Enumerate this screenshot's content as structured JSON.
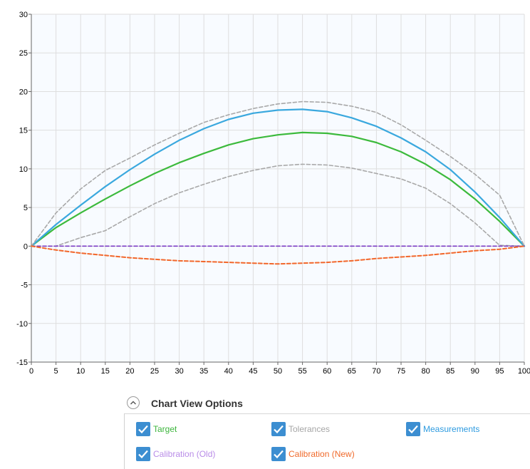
{
  "chart_data": {
    "type": "line",
    "title": "",
    "xlabel": "",
    "ylabel": "",
    "xlim": [
      0,
      100
    ],
    "ylim": [
      -15,
      30
    ],
    "x_ticks": [
      0,
      5,
      10,
      15,
      20,
      25,
      30,
      35,
      40,
      45,
      50,
      55,
      60,
      65,
      70,
      75,
      80,
      85,
      90,
      95,
      100
    ],
    "y_ticks": [
      30,
      25,
      20,
      15,
      10,
      5,
      0,
      -5,
      -10,
      -15
    ],
    "grid": true,
    "series": [
      {
        "name": "Target",
        "style": "solid",
        "color": "#3cba3c",
        "x": [
          0,
          5,
          10,
          15,
          20,
          25,
          30,
          35,
          40,
          45,
          50,
          55,
          60,
          65,
          70,
          75,
          80,
          85,
          90,
          95,
          100
        ],
        "y": [
          0,
          2.4,
          4.3,
          6.1,
          7.8,
          9.4,
          10.8,
          12.0,
          13.1,
          13.9,
          14.4,
          14.7,
          14.6,
          14.2,
          13.4,
          12.2,
          10.6,
          8.6,
          6.1,
          3.2,
          0
        ]
      },
      {
        "name": "Measurements",
        "style": "solid",
        "color": "#3aa8de",
        "x": [
          0,
          5,
          10,
          15,
          20,
          25,
          30,
          35,
          40,
          45,
          50,
          55,
          60,
          65,
          70,
          75,
          80,
          85,
          90,
          95,
          100
        ],
        "y": [
          0,
          2.8,
          5.3,
          7.7,
          9.9,
          11.9,
          13.7,
          15.2,
          16.4,
          17.2,
          17.6,
          17.7,
          17.4,
          16.6,
          15.5,
          14.0,
          12.2,
          9.9,
          7.0,
          3.7,
          0
        ]
      },
      {
        "name": "Tolerances",
        "style": "dashed",
        "color": "#a8a8a8",
        "x": [
          0,
          5,
          10,
          15,
          20,
          25,
          30,
          35,
          40,
          45,
          50,
          55,
          60,
          65,
          70,
          75,
          80,
          85,
          90,
          95,
          100
        ],
        "y": [
          0,
          4.3,
          7.4,
          9.8,
          11.4,
          13.1,
          14.6,
          16.0,
          17.0,
          17.8,
          18.4,
          18.7,
          18.6,
          18.1,
          17.3,
          15.7,
          13.7,
          11.6,
          9.3,
          6.6,
          0
        ]
      },
      {
        "name": "Tolerances",
        "style": "dashed",
        "color": "#a8a8a8",
        "x": [
          0,
          5,
          10,
          15,
          20,
          25,
          30,
          35,
          40,
          45,
          50,
          55,
          60,
          65,
          70,
          75,
          80,
          85,
          90,
          95,
          100
        ],
        "y": [
          0,
          0,
          1.1,
          2.0,
          3.8,
          5.5,
          6.9,
          8.0,
          9.0,
          9.8,
          10.4,
          10.6,
          10.5,
          10.1,
          9.4,
          8.7,
          7.5,
          5.5,
          3.0,
          0.1,
          0
        ]
      },
      {
        "name": "Calibration (Old)",
        "style": "dashed",
        "color": "#7b3cc4",
        "x": [
          0,
          100
        ],
        "y": [
          0,
          0
        ]
      },
      {
        "name": "Calibration (New)",
        "style": "dashed",
        "color": "#f2672b",
        "x": [
          0,
          5,
          10,
          15,
          20,
          25,
          30,
          35,
          40,
          45,
          50,
          55,
          60,
          65,
          70,
          75,
          80,
          85,
          90,
          95,
          100
        ],
        "y": [
          0,
          -0.5,
          -0.9,
          -1.2,
          -1.5,
          -1.7,
          -1.9,
          -2.0,
          -2.1,
          -2.2,
          -2.3,
          -2.2,
          -2.1,
          -1.9,
          -1.6,
          -1.4,
          -1.2,
          -0.9,
          -0.6,
          -0.4,
          0
        ]
      }
    ]
  },
  "options_panel": {
    "title": "Chart View Options",
    "collapse_icon": "chevron-up-icon",
    "checkbox_color": "#3c8ed1",
    "items": [
      {
        "label": "Target",
        "checked": true,
        "color": "#3cb53c"
      },
      {
        "label": "Tolerances",
        "checked": true,
        "color": "#a6a6a6"
      },
      {
        "label": "Measurements",
        "checked": true,
        "color": "#2e9be0"
      },
      {
        "label": "Calibration (Old)",
        "checked": true,
        "color": "#b98ce8"
      },
      {
        "label": "Calibration (New)",
        "checked": true,
        "color": "#f06a2b"
      }
    ]
  }
}
